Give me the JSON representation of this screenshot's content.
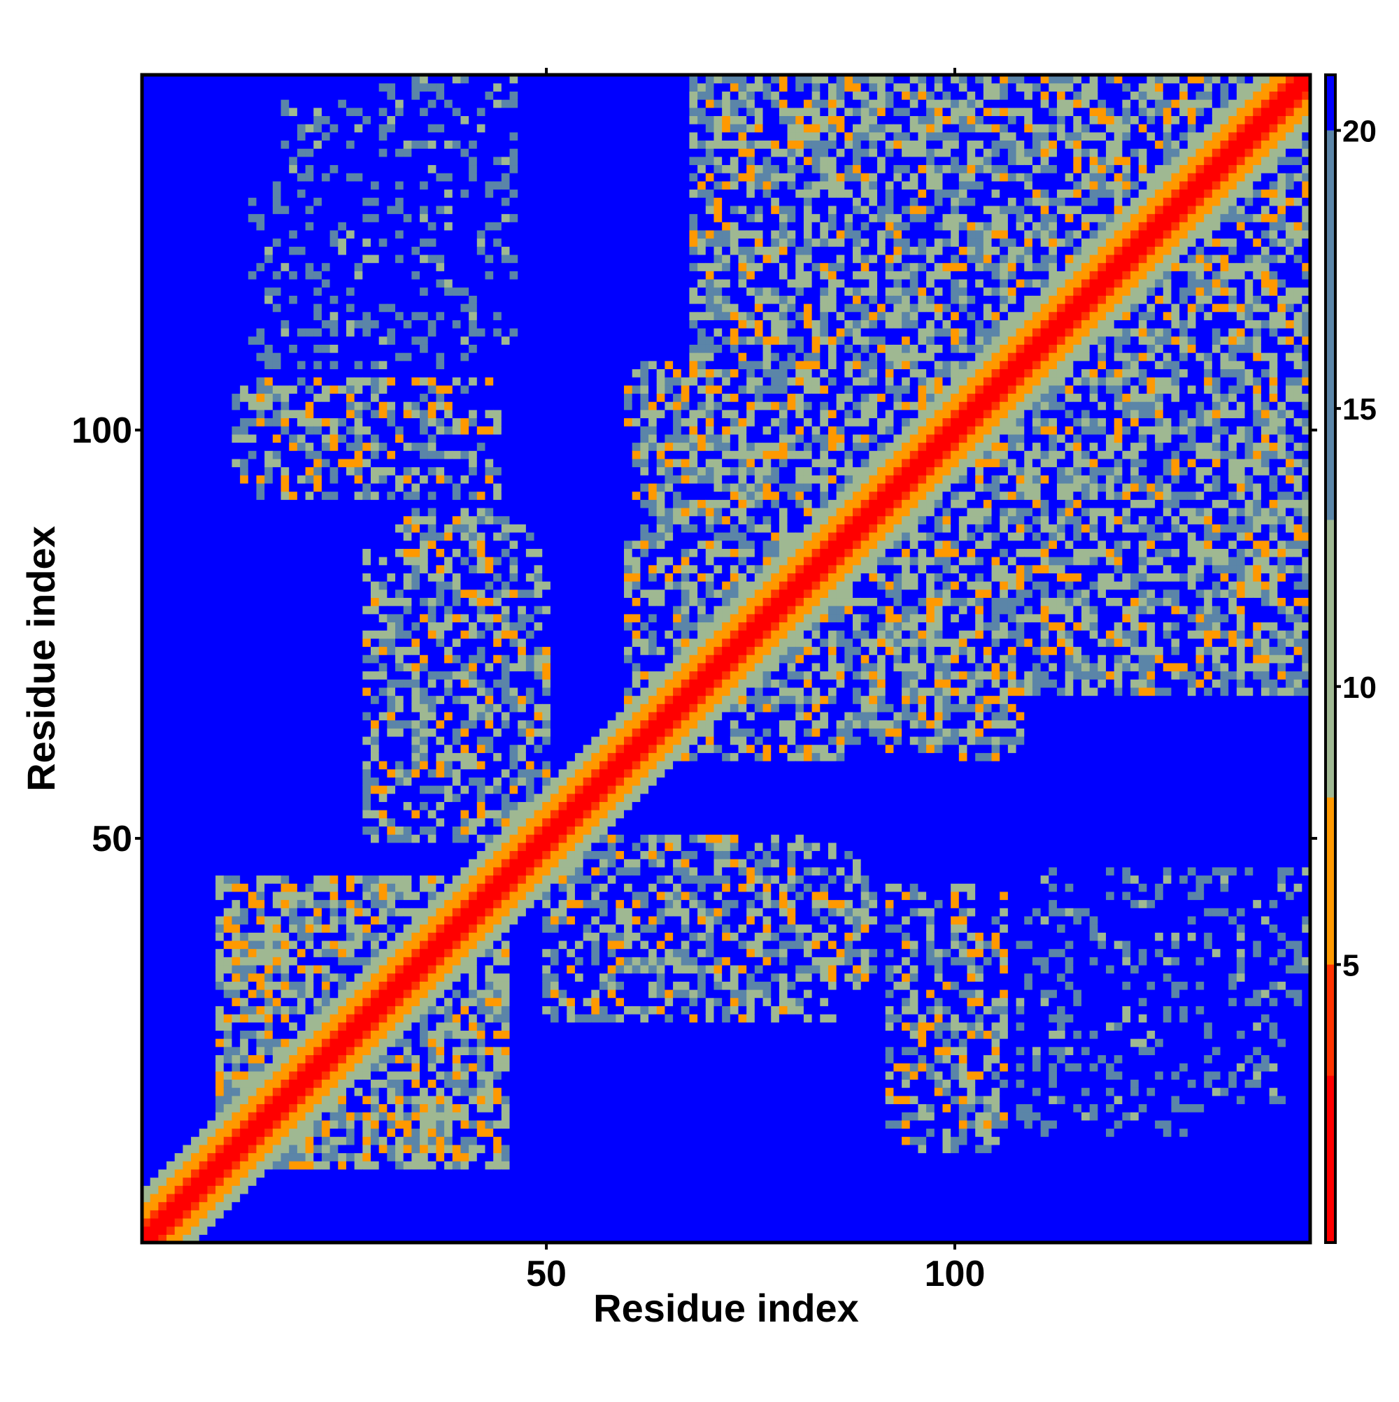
{
  "chart_data": {
    "type": "heatmap",
    "title": "",
    "xlabel": "Residue index",
    "ylabel": "Residue index",
    "n_residues": 143,
    "x_range": [
      0.5,
      143.5
    ],
    "y_range": [
      0.5,
      143.5
    ],
    "x_ticks": [
      50,
      100
    ],
    "y_ticks": [
      50,
      100
    ],
    "x_tick_labels": [
      "50",
      "100"
    ],
    "y_tick_labels": [
      "50",
      "100"
    ],
    "colorbar": {
      "range": [
        0,
        21
      ],
      "ticks": [
        5,
        10,
        15,
        20
      ],
      "tick_labels": [
        "5",
        "10",
        "15",
        "20"
      ],
      "colors": [
        "#ff0000",
        "#ff3300",
        "#ff9900",
        "#9fb892",
        "#5b85a8",
        "#0000ff"
      ]
    },
    "matrix_description_values": {
      "diagonal_distance": 0,
      "near_diagonal_distance": 4,
      "far_distance": 21
    },
    "contact_regions": [
      {
        "x": [
          15,
          45
        ],
        "y": [
          10,
          40
        ],
        "min_distance": 6,
        "density": 0.75
      },
      {
        "x": [
          28,
          50
        ],
        "y": [
          50,
          85
        ],
        "min_distance": 6,
        "density": 0.6
      },
      {
        "x": [
          12,
          42
        ],
        "y": [
          92,
          105
        ],
        "min_distance": 6,
        "density": 0.55
      },
      {
        "x": [
          14,
          40
        ],
        "y": [
          108,
          130
        ],
        "min_distance": 12,
        "density": 0.25
      },
      {
        "x": [
          30,
          42
        ],
        "y": [
          128,
          143
        ],
        "min_distance": 12,
        "density": 0.3
      },
      {
        "x": [
          55,
          90
        ],
        "y": [
          32,
          48
        ],
        "min_distance": 6,
        "density": 0.6
      },
      {
        "x": [
          92,
          106
        ],
        "y": [
          14,
          44
        ],
        "min_distance": 6,
        "density": 0.55
      },
      {
        "x": [
          108,
          140
        ],
        "y": [
          18,
          28
        ],
        "min_distance": 12,
        "density": 0.3
      },
      {
        "x": [
          110,
          143
        ],
        "y": [
          34,
          46
        ],
        "min_distance": 12,
        "density": 0.3
      },
      {
        "x": [
          64,
          108
        ],
        "y": [
          60,
          100
        ],
        "min_distance": 6,
        "density": 0.6
      },
      {
        "x": [
          68,
          143
        ],
        "y": [
          90,
          143
        ],
        "min_distance": 6,
        "density": 0.7
      },
      {
        "x": [
          96,
          143
        ],
        "y": [
          70,
          100
        ],
        "min_distance": 6,
        "density": 0.6
      }
    ]
  }
}
